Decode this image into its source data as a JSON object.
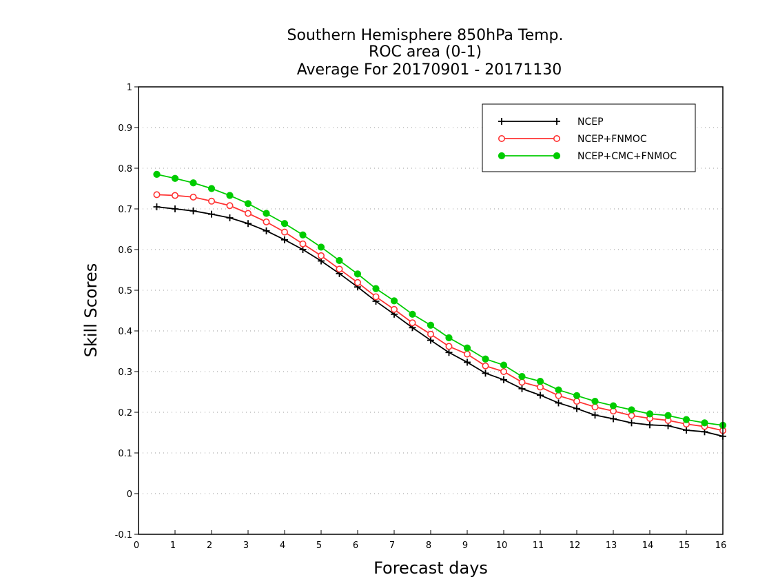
{
  "chart_data": {
    "type": "line",
    "title_lines": [
      "Southern Hemisphere 850hPa Temp.",
      "ROC area (0-1)",
      "Average For 20170901 - 20171130"
    ],
    "xlabel": "Forecast days",
    "ylabel": "Skill Scores",
    "xlim": [
      0,
      16
    ],
    "ylim": [
      -0.1,
      1
    ],
    "x_ticks": [
      0,
      1,
      2,
      3,
      4,
      5,
      6,
      7,
      8,
      9,
      10,
      11,
      12,
      13,
      14,
      15,
      16
    ],
    "x_tick_labels": [
      "0",
      "1",
      "2",
      "3",
      "4",
      "5",
      "6",
      "7",
      "8",
      "9",
      "10",
      "11",
      "12",
      "13",
      "14",
      "15",
      "16"
    ],
    "y_ticks": [
      -0.1,
      0,
      0.1,
      0.2,
      0.3,
      0.4,
      0.5,
      0.6,
      0.7,
      0.8,
      0.9,
      1
    ],
    "y_tick_labels": [
      "-0.1",
      "0",
      "0.1",
      "0.2",
      "0.3",
      "0.4",
      "0.5",
      "0.6",
      "0.7",
      "0.8",
      "0.9",
      "1"
    ],
    "grid": "horizontal dotted",
    "legend_position": "top-right",
    "x": [
      0.5,
      1,
      1.5,
      2,
      2.5,
      3,
      3.5,
      4,
      4.5,
      5,
      5.5,
      6,
      6.5,
      7,
      7.5,
      8,
      8.5,
      9,
      9.5,
      10,
      10.5,
      11,
      11.5,
      12,
      12.5,
      13,
      13.5,
      14,
      14.5,
      15,
      15.5,
      16
    ],
    "series": [
      {
        "name": "NCEP",
        "color": "#000000",
        "marker": "plus",
        "values": [
          0.705,
          0.7,
          0.695,
          0.687,
          0.678,
          0.664,
          0.646,
          0.624,
          0.6,
          0.572,
          0.541,
          0.508,
          0.473,
          0.441,
          0.408,
          0.377,
          0.347,
          0.323,
          0.296,
          0.28,
          0.258,
          0.242,
          0.223,
          0.209,
          0.193,
          0.184,
          0.174,
          0.169,
          0.167,
          0.156,
          0.152,
          0.141
        ]
      },
      {
        "name": "NCEP+FNMOC",
        "color": "#ff3333",
        "marker": "open-circle",
        "values": [
          0.735,
          0.733,
          0.729,
          0.719,
          0.708,
          0.689,
          0.668,
          0.643,
          0.614,
          0.585,
          0.552,
          0.519,
          0.484,
          0.453,
          0.42,
          0.392,
          0.362,
          0.343,
          0.314,
          0.3,
          0.274,
          0.262,
          0.241,
          0.227,
          0.213,
          0.203,
          0.192,
          0.185,
          0.18,
          0.171,
          0.165,
          0.155
        ]
      },
      {
        "name": "NCEP+CMC+FNMOC",
        "color": "#00cc00",
        "marker": "filled-circle",
        "values": [
          0.785,
          0.775,
          0.764,
          0.75,
          0.733,
          0.713,
          0.689,
          0.664,
          0.636,
          0.606,
          0.573,
          0.54,
          0.504,
          0.474,
          0.441,
          0.414,
          0.383,
          0.358,
          0.331,
          0.316,
          0.288,
          0.276,
          0.255,
          0.241,
          0.227,
          0.216,
          0.206,
          0.196,
          0.192,
          0.182,
          0.174,
          0.168
        ]
      }
    ]
  }
}
